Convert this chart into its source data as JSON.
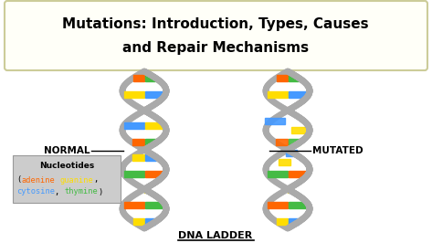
{
  "title_line1": "Mutations: Introduction, Types, Causes",
  "title_line2": "and Repair Mechanisms",
  "label_normal": "NORMAL",
  "label_mutated": "MUTATED",
  "label_dna": "DNA LADDER",
  "nucleotides_title": "Nucleotides",
  "adenine_color": "#FF6600",
  "guanine_color": "#FFDD00",
  "cytosine_color": "#4499FF",
  "thymine_color": "#44BB44",
  "bg_color": "#FFFFFF",
  "helix_color": "#AAAAAA",
  "nucleotide_legend_bg": "#CCCCCC"
}
